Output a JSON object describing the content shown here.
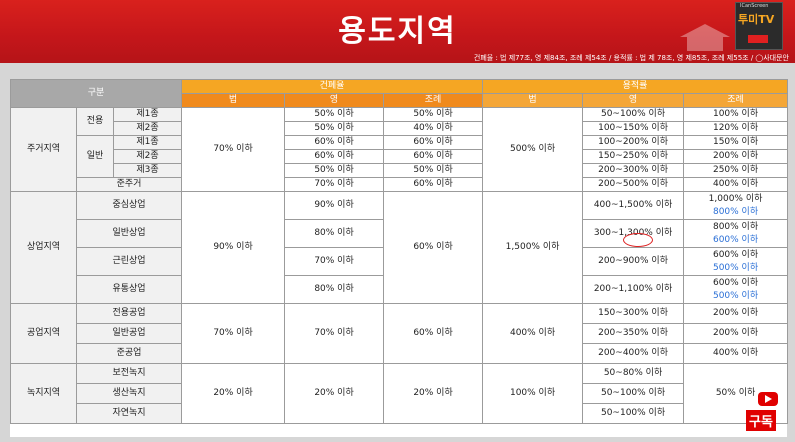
{
  "header": {
    "title": "용도지역",
    "reference": "건폐율 : 법 제77조, 영 제84조, 조례 제54조 / 용적률 : 법 제 78조, 영 제85조, 조례 제55조 / ◯사대문안",
    "logo_text": "투미TV",
    "logo_small": "ICanScreen",
    "logo_sub": "clear"
  },
  "table": {
    "h_gubun": "구분",
    "h_bcr": "건폐율",
    "h_far": "용적률",
    "h_law": "법",
    "h_decree": "영",
    "h_ordinance": "조례",
    "res": {
      "label": "주거지역",
      "jeonyong": "전용",
      "ilban": "일반",
      "rows": [
        {
          "name": "제1종",
          "bcr_decree": "50% 이하",
          "bcr_ord": "50% 이하",
          "far_decree": "50~100% 이하",
          "far_ord": "100% 이하"
        },
        {
          "name": "제2종",
          "bcr_decree": "50% 이하",
          "bcr_ord": "40% 이하",
          "far_decree": "100~150% 이하",
          "far_ord": "120% 이하"
        },
        {
          "name": "제1종",
          "bcr_decree": "60% 이하",
          "bcr_ord": "60% 이하",
          "far_decree": "100~200% 이하",
          "far_ord": "150% 이하"
        },
        {
          "name": "제2종",
          "bcr_decree": "60% 이하",
          "bcr_ord": "60% 이하",
          "far_decree": "150~250% 이하",
          "far_ord": "200% 이하"
        },
        {
          "name": "제3종",
          "bcr_decree": "50% 이하",
          "bcr_ord": "50% 이하",
          "far_decree": "200~300% 이하",
          "far_ord": "250% 이하"
        }
      ],
      "junjugeo": {
        "name": "준주거",
        "bcr_decree": "70% 이하",
        "bcr_ord": "60% 이하",
        "far_decree": "200~500% 이하",
        "far_ord": "400% 이하"
      },
      "bcr_law": "70% 이하",
      "far_law": "500% 이하"
    },
    "com": {
      "label": "상업지역",
      "bcr_law": "90% 이하",
      "bcr_ord": "60% 이하",
      "far_law": "1,500% 이하",
      "rows": [
        {
          "name": "중심상업",
          "bcr_decree": "90% 이하",
          "far_decree": "400~1,500% 이하",
          "far_ord": "1,000% 이하",
          "far_ord2": "800% 이하"
        },
        {
          "name": "일반상업",
          "bcr_decree": "80% 이하",
          "far_decree": "300~1,300% 이하",
          "far_ord": "800% 이하",
          "far_ord2": "600% 이하"
        },
        {
          "name": "근린상업",
          "bcr_decree": "70% 이하",
          "far_decree": "200~900% 이하",
          "far_ord": "600% 이하",
          "far_ord2": "500% 이하"
        },
        {
          "name": "유통상업",
          "bcr_decree": "80% 이하",
          "far_decree": "200~1,100% 이하",
          "far_ord": "600% 이하",
          "far_ord2": "500% 이하"
        }
      ]
    },
    "ind": {
      "label": "공업지역",
      "bcr_law": "70% 이하",
      "bcr_decree": "70% 이하",
      "bcr_ord": "60% 이하",
      "far_law": "400% 이하",
      "rows": [
        {
          "name": "전용공업",
          "far_decree": "150~300% 이하",
          "far_ord": "200% 이하"
        },
        {
          "name": "일반공업",
          "far_decree": "200~350% 이하",
          "far_ord": "200% 이하"
        },
        {
          "name": "준공업",
          "far_decree": "200~400% 이하",
          "far_ord": "400% 이하"
        }
      ]
    },
    "green": {
      "label": "녹지지역",
      "bcr_law": "20% 이하",
      "bcr_decree": "20% 이하",
      "bcr_ord": "20% 이하",
      "far_law": "100% 이하",
      "far_ord": "50% 이하",
      "rows": [
        {
          "name": "보전녹지",
          "far_decree": "50~80% 이하"
        },
        {
          "name": "생산녹지",
          "far_decree": "50~100% 이하"
        },
        {
          "name": "자연녹지",
          "far_decree": "50~100% 이하"
        }
      ]
    }
  },
  "youtube": {
    "subscribe": "구독"
  },
  "colors": {
    "banner": "#c4161a",
    "header_orange": "#f5a623",
    "header_gray": "#a8a8a8",
    "blue_text": "#2a6fd6"
  }
}
